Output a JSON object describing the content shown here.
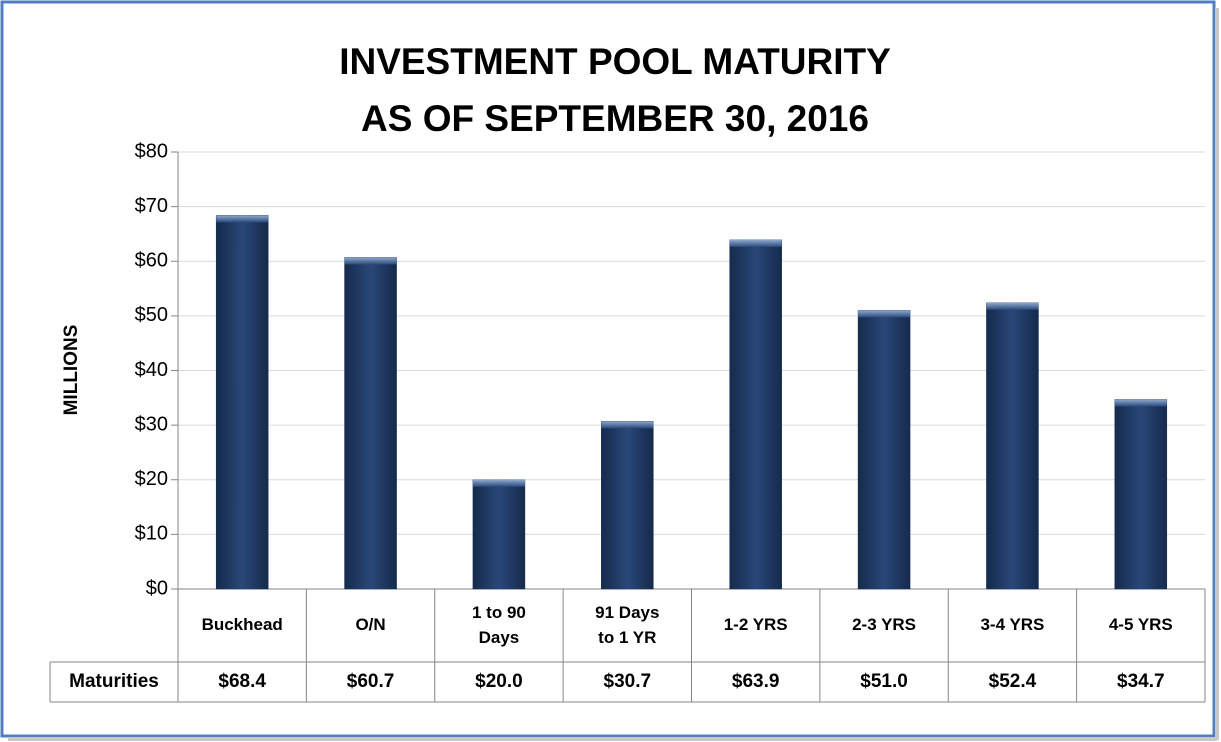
{
  "chart_data": {
    "type": "bar",
    "title": [
      "INVESTMENT POOL MATURITY",
      "AS OF SEPTEMBER 30, 2016"
    ],
    "y_label": "MILLIONS",
    "categories": [
      "Buckhead",
      "O/N",
      "1 to 90 Days",
      "91 Days to 1 YR",
      "1-2 YRS",
      "2-3 YRS",
      "3-4 YRS",
      "4-5 YRS"
    ],
    "series": [
      {
        "name": "Maturities",
        "color": "#1f3864",
        "values": [
          68.4,
          60.7,
          20.0,
          30.7,
          63.9,
          51.0,
          52.4,
          34.7
        ],
        "value_labels": [
          "$68.4",
          "$60.7",
          "$20.0",
          "$30.7",
          "$63.9",
          "$51.0",
          "$52.4",
          "$34.7"
        ]
      }
    ],
    "ylim": [
      0,
      80
    ],
    "yticks": [
      {
        "value": 0,
        "label": "$0"
      },
      {
        "value": 10,
        "label": "$10"
      },
      {
        "value": 20,
        "label": "$20"
      },
      {
        "value": 30,
        "label": "$30"
      },
      {
        "value": 40,
        "label": "$40"
      },
      {
        "value": 50,
        "label": "$50"
      },
      {
        "value": 60,
        "label": "$60"
      },
      {
        "value": 70,
        "label": "$70"
      },
      {
        "value": 80,
        "label": "$80"
      }
    ],
    "grid": true
  }
}
